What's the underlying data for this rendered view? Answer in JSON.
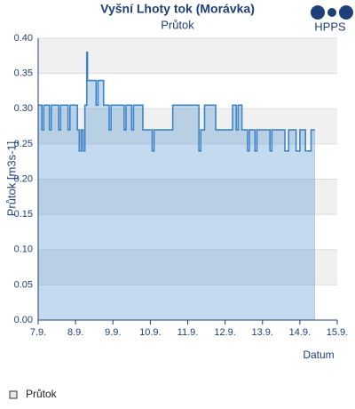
{
  "header": {
    "logo": "HPPS"
  },
  "chart_data": {
    "type": "line",
    "title": "Vyšní Lhoty tok (Morávka)",
    "subtitle": "Průtok",
    "y_label": "Průtok [m3s-1]",
    "x_label": "Datum",
    "color": "#3d85c6",
    "area": true,
    "step": true,
    "grid": true,
    "legend": "bottom-left",
    "xlim": [
      7,
      15
    ],
    "xticks": [
      {
        "value": 7,
        "label": "7.9."
      },
      {
        "value": 8,
        "label": "8.9."
      },
      {
        "value": 9,
        "label": "9.9."
      },
      {
        "value": 10,
        "label": "10.9."
      },
      {
        "value": 11,
        "label": "11.9."
      },
      {
        "value": 12,
        "label": "12.9."
      },
      {
        "value": 13,
        "label": "13.9."
      },
      {
        "value": 14,
        "label": "14.9."
      },
      {
        "value": 15,
        "label": "15.9."
      }
    ],
    "ylim": [
      0,
      0.4
    ],
    "yticks": [
      {
        "value": 0,
        "label": "0.00"
      },
      {
        "value": 0.05,
        "label": "0.05"
      },
      {
        "value": 0.1,
        "label": "0.10"
      },
      {
        "value": 0.15,
        "label": "0.15"
      },
      {
        "value": 0.2,
        "label": "0.20"
      },
      {
        "value": 0.25,
        "label": "0.25"
      },
      {
        "value": 0.3,
        "label": "0.30"
      },
      {
        "value": 0.35,
        "label": "0.35"
      },
      {
        "value": 0.4,
        "label": "0.40"
      }
    ],
    "series": [
      {
        "name": "Průtok",
        "color": "#3d85c6",
        "x": [
          7.0,
          7.1,
          7.1,
          7.15,
          7.15,
          7.3,
          7.3,
          7.35,
          7.35,
          7.55,
          7.55,
          7.6,
          7.6,
          7.8,
          7.8,
          7.85,
          7.85,
          8.05,
          8.05,
          8.1,
          8.1,
          8.15,
          8.15,
          8.2,
          8.2,
          8.25,
          8.25,
          8.3,
          8.3,
          8.32,
          8.32,
          8.55,
          8.55,
          8.6,
          8.6,
          8.75,
          8.75,
          8.9,
          8.9,
          8.95,
          8.95,
          9.3,
          9.3,
          9.35,
          9.35,
          9.5,
          9.5,
          9.55,
          9.55,
          9.8,
          9.8,
          10.05,
          10.05,
          10.1,
          10.1,
          10.6,
          10.6,
          11.3,
          11.3,
          11.35,
          11.35,
          11.45,
          11.45,
          11.75,
          11.75,
          12.2,
          12.2,
          12.3,
          12.3,
          12.35,
          12.35,
          12.45,
          12.45,
          12.6,
          12.6,
          12.65,
          12.65,
          12.8,
          12.8,
          12.85,
          12.85,
          13.2,
          13.2,
          13.25,
          13.25,
          13.6,
          13.6,
          13.7,
          13.7,
          13.9,
          13.9,
          14.0,
          14.0,
          14.15,
          14.15,
          14.3,
          14.3,
          14.4
        ],
        "values": [
          0.305,
          0.305,
          0.27,
          0.27,
          0.305,
          0.305,
          0.27,
          0.27,
          0.305,
          0.305,
          0.27,
          0.27,
          0.305,
          0.305,
          0.27,
          0.27,
          0.305,
          0.305,
          0.27,
          0.27,
          0.24,
          0.24,
          0.27,
          0.27,
          0.24,
          0.24,
          0.305,
          0.305,
          0.38,
          0.38,
          0.34,
          0.34,
          0.305,
          0.305,
          0.34,
          0.34,
          0.305,
          0.305,
          0.27,
          0.27,
          0.305,
          0.305,
          0.27,
          0.27,
          0.305,
          0.305,
          0.27,
          0.27,
          0.305,
          0.305,
          0.27,
          0.27,
          0.24,
          0.24,
          0.27,
          0.27,
          0.305,
          0.305,
          0.24,
          0.24,
          0.27,
          0.27,
          0.305,
          0.305,
          0.27,
          0.27,
          0.305,
          0.305,
          0.27,
          0.27,
          0.305,
          0.305,
          0.27,
          0.27,
          0.24,
          0.24,
          0.27,
          0.27,
          0.24,
          0.24,
          0.27,
          0.27,
          0.24,
          0.24,
          0.27,
          0.27,
          0.24,
          0.24,
          0.27,
          0.27,
          0.24,
          0.24,
          0.27,
          0.27,
          0.24,
          0.24,
          0.27,
          0.27
        ]
      }
    ]
  }
}
